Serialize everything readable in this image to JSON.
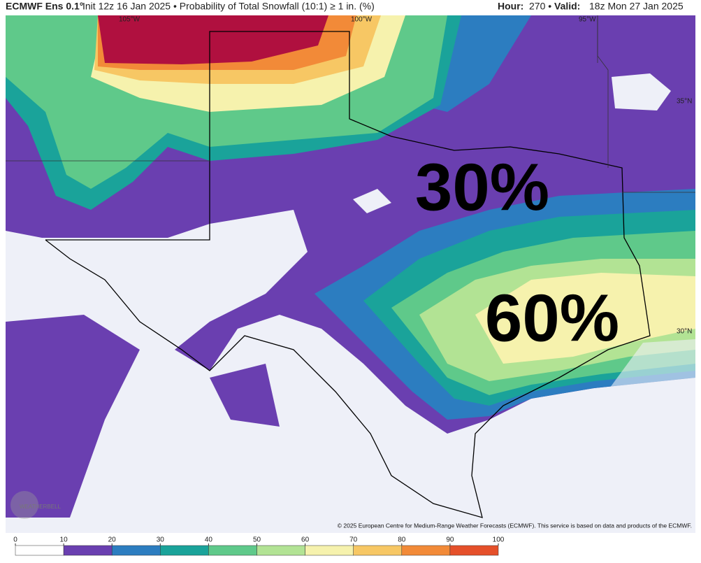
{
  "header": {
    "model": "ECMWF Ens 0.1°",
    "description": "Init 12z 16 Jan 2025 • Probability of Total Snowfall (10:1) ≥ 1 in. (%)",
    "hour_label": "Hour:",
    "hour": "270 •",
    "valid_label": "Valid:",
    "valid": "18z Mon 27 Jan 2025"
  },
  "map": {
    "longitude_labels": [
      "105°W",
      "100°W",
      "95°W"
    ],
    "latitude_labels": [
      "35°N",
      "30°N"
    ],
    "annotations": [
      "30%",
      "60%"
    ],
    "logo": "WEATHERBELL",
    "copyright": "© 2025 European Centre for Medium-Range Weather Forecasts (ECMWF). This service is based on data and products of the ECMWF."
  },
  "colorbar": {
    "ticks": [
      0,
      10,
      20,
      30,
      40,
      50,
      60,
      70,
      80,
      90,
      100
    ],
    "colors": [
      "#ffffff",
      "#6a3fb0",
      "#2c7dc0",
      "#1aa39a",
      "#5fc98a",
      "#b2e394",
      "#f6f2ad",
      "#f7c764",
      "#f28a38",
      "#e5502a",
      "#b0103f"
    ]
  }
}
